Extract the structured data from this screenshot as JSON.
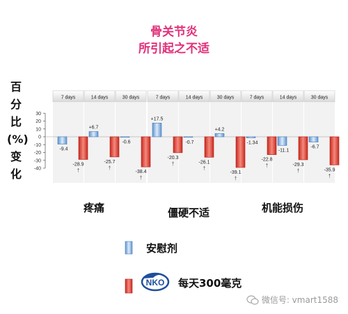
{
  "chart_data": {
    "type": "bar",
    "title_lines": [
      "骨关节炎",
      "所引起之不适"
    ],
    "ylabel_chars": [
      "百",
      "分",
      "比",
      "(%)",
      "变",
      "化"
    ],
    "ylim": [
      -40,
      30
    ],
    "yticks": [
      30,
      20,
      10,
      0,
      -10,
      -20,
      -30,
      -40
    ],
    "groups": [
      {
        "label": "疼痛",
        "periods": [
          "7 days",
          "14 days",
          "30 days"
        ]
      },
      {
        "label": "僵硬不适",
        "periods": [
          "7 days",
          "14 days",
          "30 days"
        ]
      },
      {
        "label": "机能损伤",
        "periods": [
          "7 days",
          "14 days",
          "30 days"
        ]
      }
    ],
    "series": [
      {
        "name": "安慰剂",
        "color": "#9fc3e8",
        "values": [
          -9.4,
          6.7,
          -0.6,
          17.5,
          -0.7,
          4.2,
          -1.34,
          -11.1,
          -6.7
        ],
        "labels": [
          "-9.4",
          "+6.7",
          "-0.6",
          "+17.5",
          "-0.7",
          "+4.2",
          "-1.34",
          "-11.1",
          "-6.7"
        ]
      },
      {
        "name": "每天300毫克",
        "color": "#e8463a",
        "values": [
          -28.9,
          -25.7,
          -38.4,
          -20.3,
          -26.1,
          -39.1,
          -22.8,
          -29.3,
          -35.9
        ],
        "labels": [
          "-28.9",
          "-25.7",
          "-38.4",
          "-20.3",
          "-26.1",
          "-39.1",
          "-22.8",
          "-29.3",
          "-35.9"
        ],
        "marker": "†"
      }
    ]
  },
  "legend": {
    "logo_text": "NKO"
  },
  "watermark": {
    "text": "微信号: vmart1588"
  }
}
